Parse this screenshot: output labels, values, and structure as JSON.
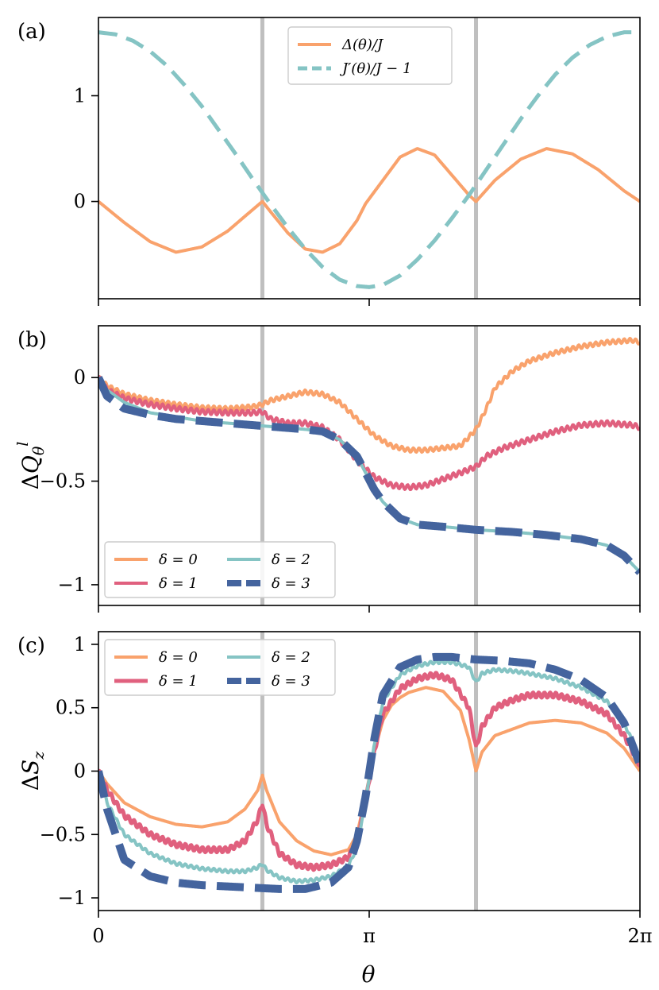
{
  "chart_data": [
    {
      "type": "line",
      "panel_label": "(a)",
      "xlabel": "",
      "ylabel": "",
      "xlim": [
        0,
        6.2832
      ],
      "ylim": [
        -0.92,
        1.74
      ],
      "yticks": [
        {
          "value": 0,
          "label": "0"
        },
        {
          "value": 1,
          "label": "1"
        }
      ],
      "xticks": [
        {
          "value": 0,
          "label": ""
        },
        {
          "value": 3.1416,
          "label": ""
        },
        {
          "value": 6.2832,
          "label": ""
        }
      ],
      "vlines": [
        1.902,
        4.381
      ],
      "vline_color": "#bfbfbf",
      "legend": {
        "placement": "top-center",
        "ncol": 1
      },
      "series": [
        {
          "name": "Δ(θ)/J",
          "color": "#f9a26c",
          "dash": "solid",
          "width": 4,
          "x": [
            0,
            0.3,
            0.6,
            0.9,
            1.2,
            1.5,
            1.7,
            1.902,
            2.0,
            2.2,
            2.4,
            2.6,
            2.8,
            3.0,
            3.1,
            3.3,
            3.5,
            3.7,
            3.9,
            4.1,
            4.3,
            4.381,
            4.6,
            4.9,
            5.2,
            5.5,
            5.8,
            6.1,
            6.2832
          ],
          "y": [
            0,
            -0.2,
            -0.38,
            -0.48,
            -0.43,
            -0.28,
            -0.14,
            0.0,
            -0.1,
            -0.3,
            -0.45,
            -0.48,
            -0.4,
            -0.18,
            -0.02,
            0.2,
            0.42,
            0.5,
            0.44,
            0.25,
            0.06,
            0.0,
            0.2,
            0.4,
            0.5,
            0.45,
            0.3,
            0.1,
            0.0
          ]
        },
        {
          "name": "J′(θ)/J − 1",
          "color": "#85c4c4",
          "dash": "dashed",
          "width": 5,
          "x": [
            0,
            0.2,
            0.4,
            0.6,
            0.8,
            1.0,
            1.2,
            1.4,
            1.6,
            1.8,
            2.0,
            2.2,
            2.4,
            2.6,
            2.8,
            3.0,
            3.1416,
            3.3,
            3.5,
            3.7,
            3.9,
            4.1,
            4.3,
            4.5,
            4.7,
            4.9,
            5.1,
            5.3,
            5.5,
            5.7,
            5.9,
            6.1,
            6.2832
          ],
          "y": [
            1.6,
            1.58,
            1.52,
            1.42,
            1.28,
            1.1,
            0.9,
            0.67,
            0.44,
            0.2,
            -0.03,
            -0.25,
            -0.45,
            -0.62,
            -0.74,
            -0.8,
            -0.81,
            -0.79,
            -0.7,
            -0.55,
            -0.37,
            -0.16,
            0.06,
            0.3,
            0.54,
            0.78,
            1.0,
            1.2,
            1.36,
            1.48,
            1.56,
            1.6,
            1.6
          ]
        }
      ]
    },
    {
      "type": "line",
      "panel_label": "(b)",
      "xlabel": "",
      "ylabel": "ΔQθl",
      "xlim": [
        0,
        6.2832
      ],
      "ylim": [
        -1.1,
        0.25
      ],
      "yticks": [
        {
          "value": 0,
          "label": "0"
        },
        {
          "value": -0.5,
          "label": "−0.5"
        },
        {
          "value": -1,
          "label": "−1"
        }
      ],
      "xticks": [
        {
          "value": 0,
          "label": ""
        },
        {
          "value": 3.1416,
          "label": ""
        },
        {
          "value": 6.2832,
          "label": ""
        }
      ],
      "vlines": [
        1.902,
        4.381
      ],
      "vline_color": "#bfbfbf",
      "legend": {
        "placement": "lower-left",
        "ncol": 2
      },
      "series": [
        {
          "name": "δ = 0",
          "color": "#f9a26c",
          "dash": "solid",
          "width": 4,
          "wiggle": 0.01,
          "x": [
            0,
            0.1,
            0.3,
            0.6,
            0.9,
            1.2,
            1.5,
            1.8,
            1.9,
            2.0,
            2.2,
            2.4,
            2.6,
            2.8,
            3.0,
            3.2,
            3.4,
            3.6,
            3.8,
            4.0,
            4.2,
            4.381,
            4.5,
            4.6,
            4.8,
            5.0,
            5.3,
            5.6,
            5.9,
            6.2,
            6.2832
          ],
          "y": [
            0,
            -0.04,
            -0.08,
            -0.11,
            -0.13,
            -0.145,
            -0.15,
            -0.14,
            -0.13,
            -0.11,
            -0.09,
            -0.07,
            -0.08,
            -0.12,
            -0.2,
            -0.28,
            -0.33,
            -0.35,
            -0.35,
            -0.34,
            -0.33,
            -0.25,
            -0.15,
            -0.05,
            0.03,
            0.08,
            0.12,
            0.15,
            0.17,
            0.18,
            0.17
          ]
        },
        {
          "name": "δ = 1",
          "color": "#e0607e",
          "dash": "solid",
          "width": 4,
          "wiggle": 0.012,
          "x": [
            0,
            0.1,
            0.3,
            0.6,
            0.9,
            1.2,
            1.5,
            1.8,
            1.902,
            2.0,
            2.2,
            2.4,
            2.6,
            2.8,
            3.0,
            3.2,
            3.4,
            3.6,
            3.8,
            4.0,
            4.2,
            4.381,
            4.5,
            4.7,
            5.0,
            5.3,
            5.6,
            5.9,
            6.2,
            6.2832
          ],
          "y": [
            0,
            -0.06,
            -0.1,
            -0.13,
            -0.15,
            -0.165,
            -0.17,
            -0.17,
            -0.165,
            -0.2,
            -0.22,
            -0.22,
            -0.24,
            -0.3,
            -0.4,
            -0.48,
            -0.52,
            -0.53,
            -0.52,
            -0.49,
            -0.46,
            -0.43,
            -0.38,
            -0.34,
            -0.3,
            -0.26,
            -0.23,
            -0.22,
            -0.23,
            -0.24
          ]
        },
        {
          "name": "δ = 2",
          "color": "#85c4c4",
          "dash": "solid",
          "width": 4,
          "wiggle": 0,
          "x": [
            0,
            0.1,
            0.3,
            0.6,
            0.9,
            1.2,
            1.5,
            1.8,
            2.1,
            2.4,
            2.6,
            2.8,
            3.0,
            3.1,
            3.2,
            3.3,
            3.5,
            3.7,
            4.0,
            4.381,
            4.8,
            5.2,
            5.6,
            5.9,
            6.1,
            6.2832
          ],
          "y": [
            0,
            -0.06,
            -0.12,
            -0.17,
            -0.19,
            -0.21,
            -0.22,
            -0.23,
            -0.24,
            -0.25,
            -0.26,
            -0.3,
            -0.38,
            -0.46,
            -0.54,
            -0.6,
            -0.68,
            -0.71,
            -0.72,
            -0.735,
            -0.745,
            -0.76,
            -0.78,
            -0.81,
            -0.86,
            -0.94
          ]
        },
        {
          "name": "δ = 3",
          "color": "#44649e",
          "dash": "dashed",
          "width": 10,
          "wiggle": 0,
          "x": [
            0,
            0.1,
            0.3,
            0.6,
            0.9,
            1.2,
            1.5,
            1.8,
            2.1,
            2.4,
            2.6,
            2.8,
            3.0,
            3.1,
            3.2,
            3.3,
            3.5,
            3.7,
            4.0,
            4.381,
            4.8,
            5.2,
            5.6,
            5.9,
            6.1,
            6.2832
          ],
          "y": [
            0,
            -0.09,
            -0.15,
            -0.18,
            -0.2,
            -0.21,
            -0.22,
            -0.23,
            -0.24,
            -0.25,
            -0.26,
            -0.3,
            -0.38,
            -0.46,
            -0.54,
            -0.6,
            -0.68,
            -0.71,
            -0.72,
            -0.735,
            -0.745,
            -0.76,
            -0.78,
            -0.81,
            -0.86,
            -0.94
          ]
        }
      ]
    },
    {
      "type": "line",
      "panel_label": "(c)",
      "xlabel": "θ",
      "ylabel": "ΔSz",
      "xlim": [
        0,
        6.2832
      ],
      "ylim": [
        -1.1,
        1.1
      ],
      "yticks": [
        {
          "value": 1,
          "label": "1"
        },
        {
          "value": 0.5,
          "label": "0.5"
        },
        {
          "value": 0,
          "label": "0"
        },
        {
          "value": -0.5,
          "label": "−0.5"
        },
        {
          "value": -1,
          "label": "−1"
        }
      ],
      "xticks": [
        {
          "value": 0,
          "label": "0"
        },
        {
          "value": 3.1416,
          "label": "π"
        },
        {
          "value": 6.2832,
          "label": "2π"
        }
      ],
      "vlines": [
        1.902,
        4.381
      ],
      "vline_color": "#bfbfbf",
      "legend": {
        "placement": "top-left",
        "ncol": 2
      },
      "series": [
        {
          "name": "δ = 0",
          "color": "#f9a26c",
          "dash": "solid",
          "width": 4,
          "wiggle": 0,
          "x": [
            0,
            0.1,
            0.3,
            0.6,
            0.9,
            1.2,
            1.5,
            1.7,
            1.85,
            1.902,
            1.95,
            2.1,
            2.3,
            2.5,
            2.7,
            2.9,
            3.0,
            3.1,
            3.2,
            3.3,
            3.4,
            3.5,
            3.6,
            3.8,
            4.0,
            4.2,
            4.3,
            4.381,
            4.45,
            4.6,
            4.8,
            5.0,
            5.3,
            5.6,
            5.9,
            6.1,
            6.2832
          ],
          "y": [
            0,
            -0.1,
            -0.25,
            -0.36,
            -0.42,
            -0.44,
            -0.4,
            -0.3,
            -0.15,
            -0.03,
            -0.15,
            -0.4,
            -0.55,
            -0.63,
            -0.66,
            -0.62,
            -0.5,
            -0.2,
            0.15,
            0.4,
            0.52,
            0.58,
            0.62,
            0.66,
            0.63,
            0.48,
            0.25,
            0.0,
            0.15,
            0.28,
            0.33,
            0.38,
            0.4,
            0.38,
            0.3,
            0.18,
            0.0
          ]
        },
        {
          "name": "δ = 1",
          "color": "#e0607e",
          "dash": "solid",
          "width": 5,
          "wiggle": 0.02,
          "x": [
            0,
            0.1,
            0.3,
            0.6,
            0.9,
            1.2,
            1.5,
            1.7,
            1.85,
            1.902,
            1.95,
            2.1,
            2.3,
            2.5,
            2.7,
            2.9,
            3.0,
            3.1,
            3.2,
            3.3,
            3.5,
            3.7,
            3.9,
            4.1,
            4.3,
            4.381,
            4.45,
            4.6,
            4.8,
            5.0,
            5.3,
            5.6,
            5.9,
            6.1,
            6.2832
          ],
          "y": [
            0,
            -0.15,
            -0.35,
            -0.5,
            -0.58,
            -0.62,
            -0.62,
            -0.55,
            -0.38,
            -0.25,
            -0.42,
            -0.65,
            -0.74,
            -0.76,
            -0.74,
            -0.68,
            -0.55,
            -0.25,
            0.15,
            0.45,
            0.65,
            0.73,
            0.76,
            0.72,
            0.5,
            0.18,
            0.35,
            0.5,
            0.56,
            0.6,
            0.6,
            0.55,
            0.45,
            0.28,
            0.05
          ]
        },
        {
          "name": "δ = 2",
          "color": "#85c4c4",
          "dash": "solid",
          "width": 4,
          "wiggle": 0.012,
          "x": [
            0,
            0.1,
            0.3,
            0.6,
            0.9,
            1.2,
            1.5,
            1.7,
            1.85,
            1.902,
            1.95,
            2.1,
            2.3,
            2.5,
            2.7,
            2.9,
            3.0,
            3.1,
            3.2,
            3.3,
            3.5,
            3.7,
            3.9,
            4.1,
            4.3,
            4.381,
            4.45,
            4.6,
            4.8,
            5.0,
            5.3,
            5.6,
            5.9,
            6.1,
            6.2832
          ],
          "y": [
            0,
            -0.25,
            -0.5,
            -0.65,
            -0.73,
            -0.77,
            -0.79,
            -0.79,
            -0.76,
            -0.73,
            -0.78,
            -0.84,
            -0.87,
            -0.86,
            -0.83,
            -0.75,
            -0.6,
            -0.25,
            0.2,
            0.55,
            0.76,
            0.83,
            0.86,
            0.86,
            0.82,
            0.7,
            0.77,
            0.8,
            0.79,
            0.77,
            0.73,
            0.66,
            0.55,
            0.38,
            0.1
          ]
        },
        {
          "name": "δ = 3",
          "color": "#44649e",
          "dash": "dashed",
          "width": 10,
          "wiggle": 0,
          "x": [
            0,
            0.1,
            0.3,
            0.6,
            0.9,
            1.2,
            1.5,
            1.8,
            2.1,
            2.4,
            2.7,
            2.9,
            3.0,
            3.1,
            3.2,
            3.3,
            3.5,
            3.7,
            3.9,
            4.1,
            4.381,
            4.7,
            5.0,
            5.3,
            5.6,
            5.9,
            6.1,
            6.2832
          ],
          "y": [
            0,
            -0.3,
            -0.7,
            -0.83,
            -0.88,
            -0.9,
            -0.91,
            -0.92,
            -0.93,
            -0.93,
            -0.88,
            -0.76,
            -0.55,
            -0.2,
            0.25,
            0.6,
            0.82,
            0.88,
            0.9,
            0.9,
            0.88,
            0.87,
            0.85,
            0.8,
            0.72,
            0.58,
            0.38,
            0.05
          ]
        }
      ]
    }
  ]
}
